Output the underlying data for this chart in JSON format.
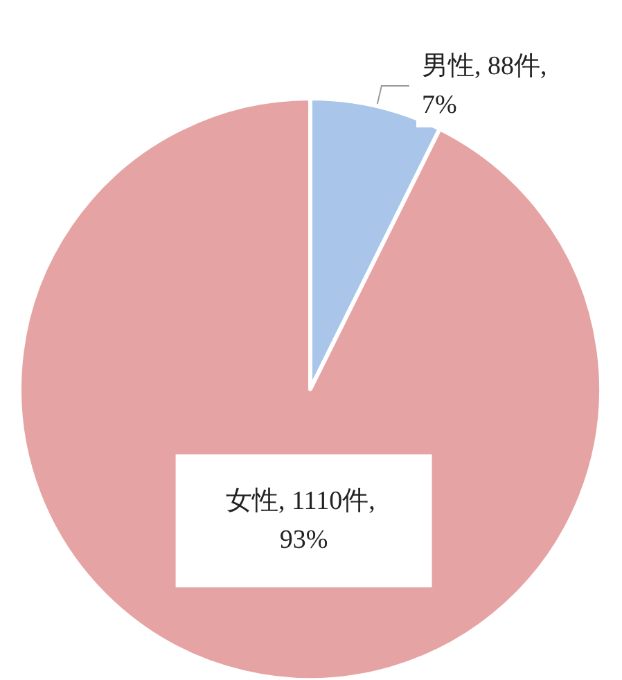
{
  "chart_data": {
    "type": "pie",
    "categories": [
      "男性",
      "女性"
    ],
    "values": [
      88,
      1110
    ],
    "colors": [
      "#a9c5ea",
      "#e6a3a3"
    ],
    "value_labels": [
      "88件, 7%",
      "1110件, 93%"
    ]
  }
}
